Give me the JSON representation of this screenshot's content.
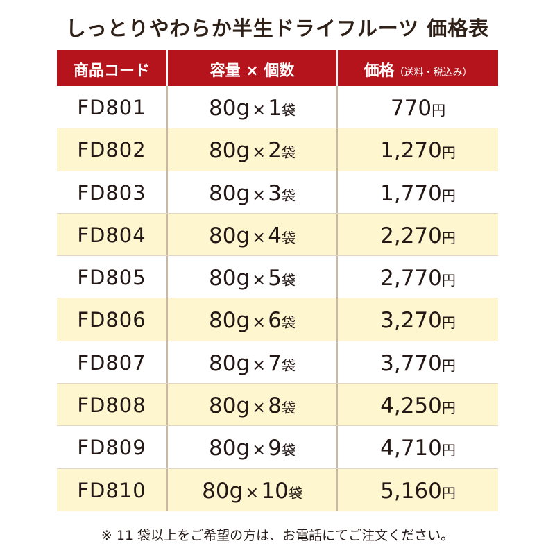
{
  "title": "しっとりやわらか半生ドライフルーツ 価格表",
  "table": {
    "headers": {
      "code": "商品コード",
      "quantity": "容量 × 個数",
      "price": "価格",
      "price_note": "（送料・税込み）"
    },
    "rows": [
      {
        "code": "FD801",
        "weight": "80g",
        "times": "×",
        "count": "1",
        "unit": "袋",
        "price": "770",
        "currency": "円"
      },
      {
        "code": "FD802",
        "weight": "80g",
        "times": "×",
        "count": "2",
        "unit": "袋",
        "price": "1,270",
        "currency": "円"
      },
      {
        "code": "FD803",
        "weight": "80g",
        "times": "×",
        "count": "3",
        "unit": "袋",
        "price": "1,770",
        "currency": "円"
      },
      {
        "code": "FD804",
        "weight": "80g",
        "times": "×",
        "count": "4",
        "unit": "袋",
        "price": "2,270",
        "currency": "円"
      },
      {
        "code": "FD805",
        "weight": "80g",
        "times": "×",
        "count": "5",
        "unit": "袋",
        "price": "2,770",
        "currency": "円"
      },
      {
        "code": "FD806",
        "weight": "80g",
        "times": "×",
        "count": "6",
        "unit": "袋",
        "price": "3,270",
        "currency": "円"
      },
      {
        "code": "FD807",
        "weight": "80g",
        "times": "×",
        "count": "7",
        "unit": "袋",
        "price": "3,770",
        "currency": "円"
      },
      {
        "code": "FD808",
        "weight": "80g",
        "times": "×",
        "count": "8",
        "unit": "袋",
        "price": "4,250",
        "currency": "円"
      },
      {
        "code": "FD809",
        "weight": "80g",
        "times": "×",
        "count": "9",
        "unit": "袋",
        "price": "4,710",
        "currency": "円"
      },
      {
        "code": "FD810",
        "weight": "80g",
        "times": "×",
        "count": "10",
        "unit": "袋",
        "price": "5,160",
        "currency": "円"
      }
    ]
  },
  "footnote": "※ 11 袋以上をご希望の方は、お電話にてご注文ください。"
}
